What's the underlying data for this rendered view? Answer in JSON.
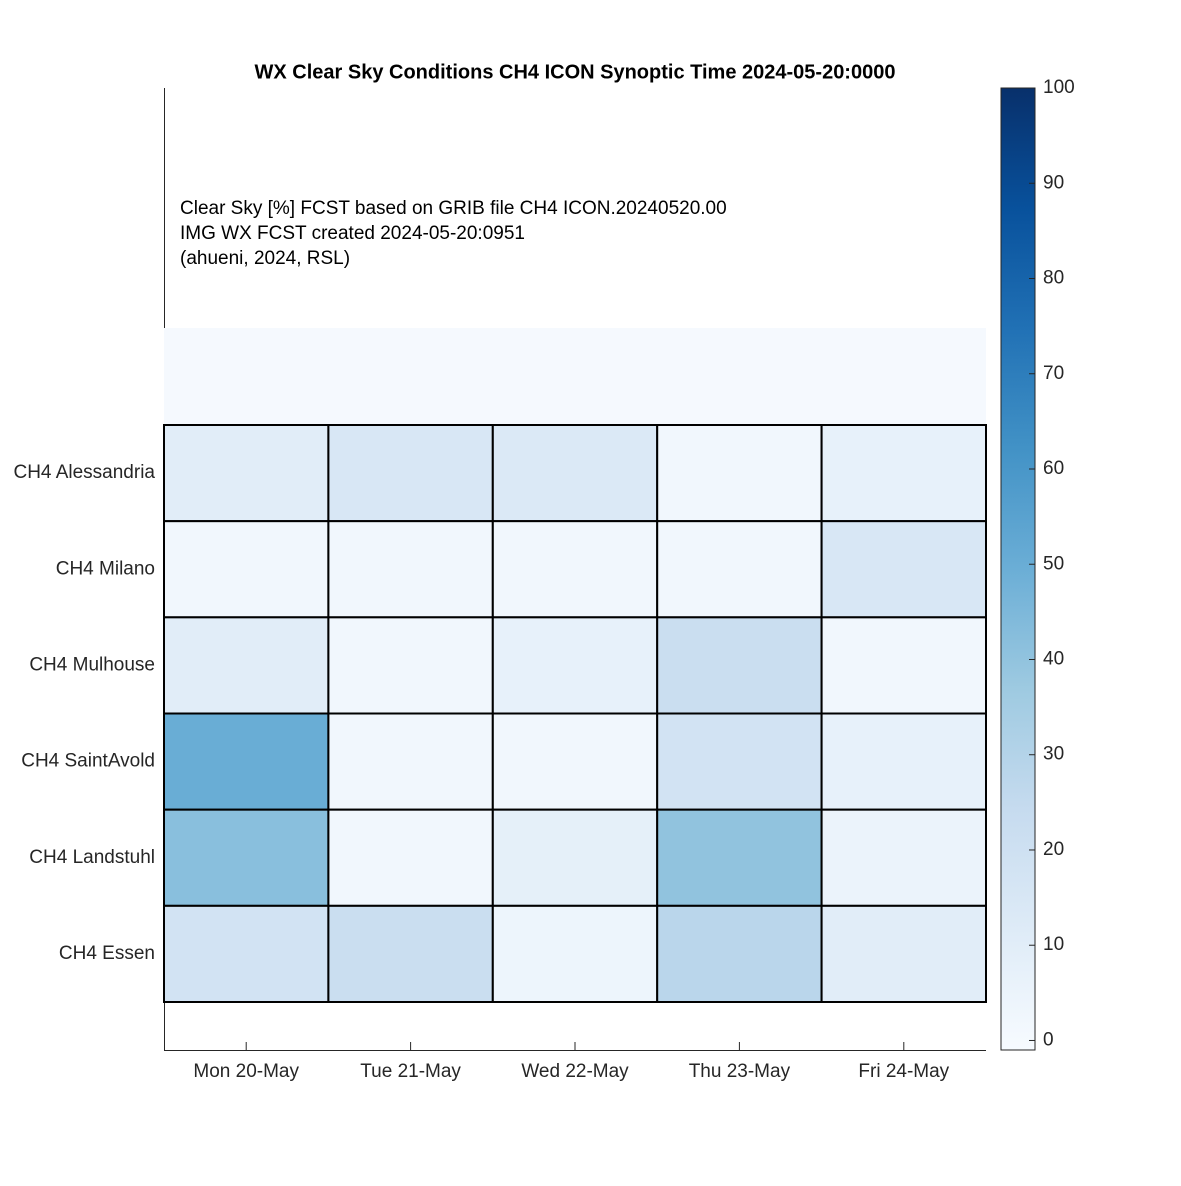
{
  "chart_data": {
    "type": "heatmap",
    "title": "WX Clear Sky Conditions CH4 ICON Synoptic Time 2024-05-20:0000",
    "annotations": [
      "Clear Sky [%]  FCST based on GRIB file CH4 ICON.20240520.00",
      "IMG WX FCST created 2024-05-20:0951",
      "(ahueni, 2024, RSL)"
    ],
    "categories": [
      "Mon 20-May",
      "Tue 21-May",
      "Wed 22-May",
      "Thu 23-May",
      "Fri 24-May"
    ],
    "rows": [
      "CH4 Alessandria",
      "CH4 Milano",
      "CH4 Mulhouse",
      "CH4 SaintAvold",
      "CH4 Landstuhl",
      "CH4 Essen"
    ],
    "values": [
      [
        10,
        15,
        13,
        2,
        7
      ],
      [
        2,
        2,
        2,
        2,
        15
      ],
      [
        10,
        2,
        7,
        22,
        2
      ],
      [
        50,
        2,
        2,
        18,
        7
      ],
      [
        42,
        2,
        8,
        40,
        5
      ],
      [
        18,
        22,
        4,
        28,
        10
      ]
    ],
    "colormap": [
      "#f7fbff",
      "#deebf7",
      "#c6dbef",
      "#9ecae1",
      "#6baed6",
      "#4292c6",
      "#2171b5",
      "#08519c",
      "#08306b"
    ],
    "zlim": [
      -1,
      100
    ],
    "zticks": [
      0,
      10,
      20,
      30,
      40,
      50,
      60,
      70,
      80,
      90,
      100
    ]
  }
}
